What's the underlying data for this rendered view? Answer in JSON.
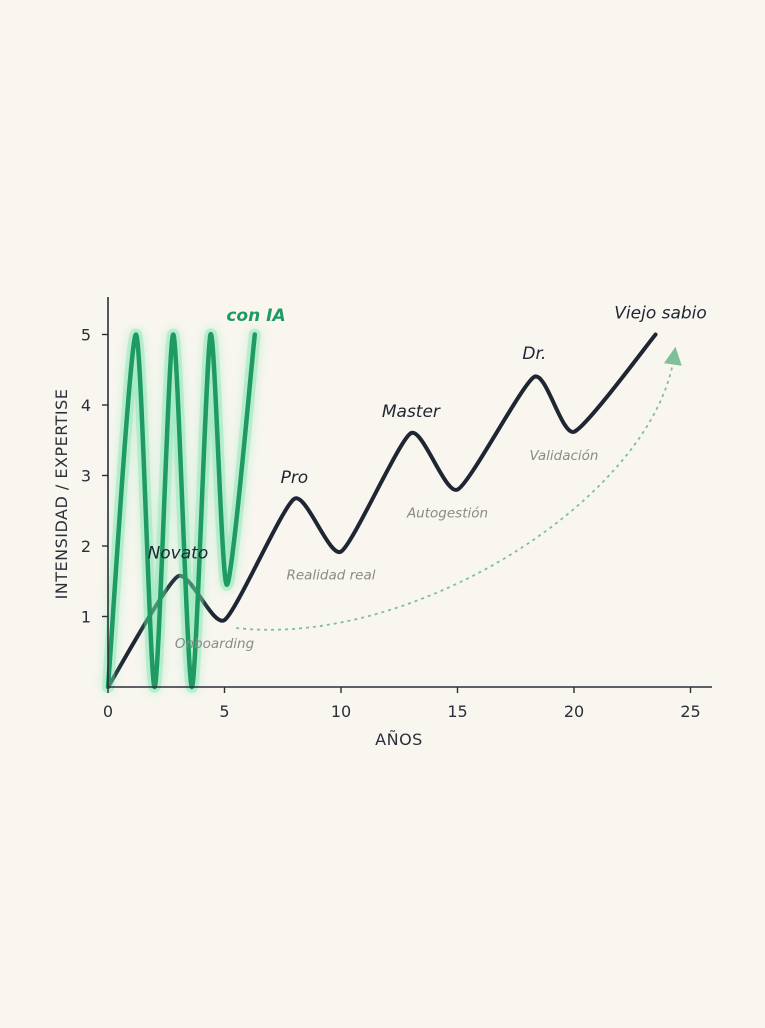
{
  "chart_data": {
    "type": "line",
    "xlabel": "AÑOS",
    "ylabel": "INTENSIDAD / EXPERTISE",
    "xlim": [
      0,
      25.5
    ],
    "ylim": [
      0,
      5.5
    ],
    "xticks": [
      "0",
      "5",
      "10",
      "15",
      "20",
      "25"
    ],
    "yticks": [
      "1",
      "2",
      "3",
      "4",
      "5"
    ],
    "grid": false,
    "series": [
      {
        "name": "",
        "color": "#1f2533",
        "points": [
          [
            0,
            0
          ],
          [
            3,
            1.57
          ],
          [
            5,
            0.95
          ],
          [
            8,
            2.67
          ],
          [
            10,
            1.92
          ],
          [
            13,
            3.6
          ],
          [
            15,
            2.8
          ],
          [
            18.3,
            4.4
          ],
          [
            20,
            3.62
          ],
          [
            23.5,
            5.0
          ]
        ]
      },
      {
        "name": "con IA",
        "color": "#1f9a63",
        "points": [
          [
            0,
            0
          ],
          [
            1.2,
            5.0
          ],
          [
            2.0,
            0.0
          ],
          [
            2.8,
            5.0
          ],
          [
            3.6,
            0.0
          ],
          [
            4.4,
            5.0
          ],
          [
            5.1,
            1.45
          ],
          [
            6.3,
            5.0
          ]
        ]
      }
    ],
    "milestones": [
      {
        "label": "Novato",
        "x": 3,
        "y": 1.57
      },
      {
        "label": "Pro",
        "x": 8,
        "y": 2.67
      },
      {
        "label": "Master",
        "x": 13,
        "y": 3.6
      },
      {
        "label": "Dr.",
        "x": 18.3,
        "y": 4.4
      },
      {
        "label": "Viejo sabio",
        "x": 23.5,
        "y": 5.0
      }
    ],
    "phases": [
      {
        "label": "Onboarding",
        "x": 5,
        "y": 0.95
      },
      {
        "label": "Realidad real",
        "x": 10,
        "y": 1.92
      },
      {
        "label": "Autogestión",
        "x": 15,
        "y": 2.8
      },
      {
        "label": "Validación",
        "x": 20,
        "y": 3.62
      }
    ],
    "ai_label": "con IA",
    "dashed_arrow": {
      "color": "#7fbf9a",
      "from": [
        5.5,
        0.95
      ],
      "to": [
        24.3,
        4.7
      ]
    }
  }
}
